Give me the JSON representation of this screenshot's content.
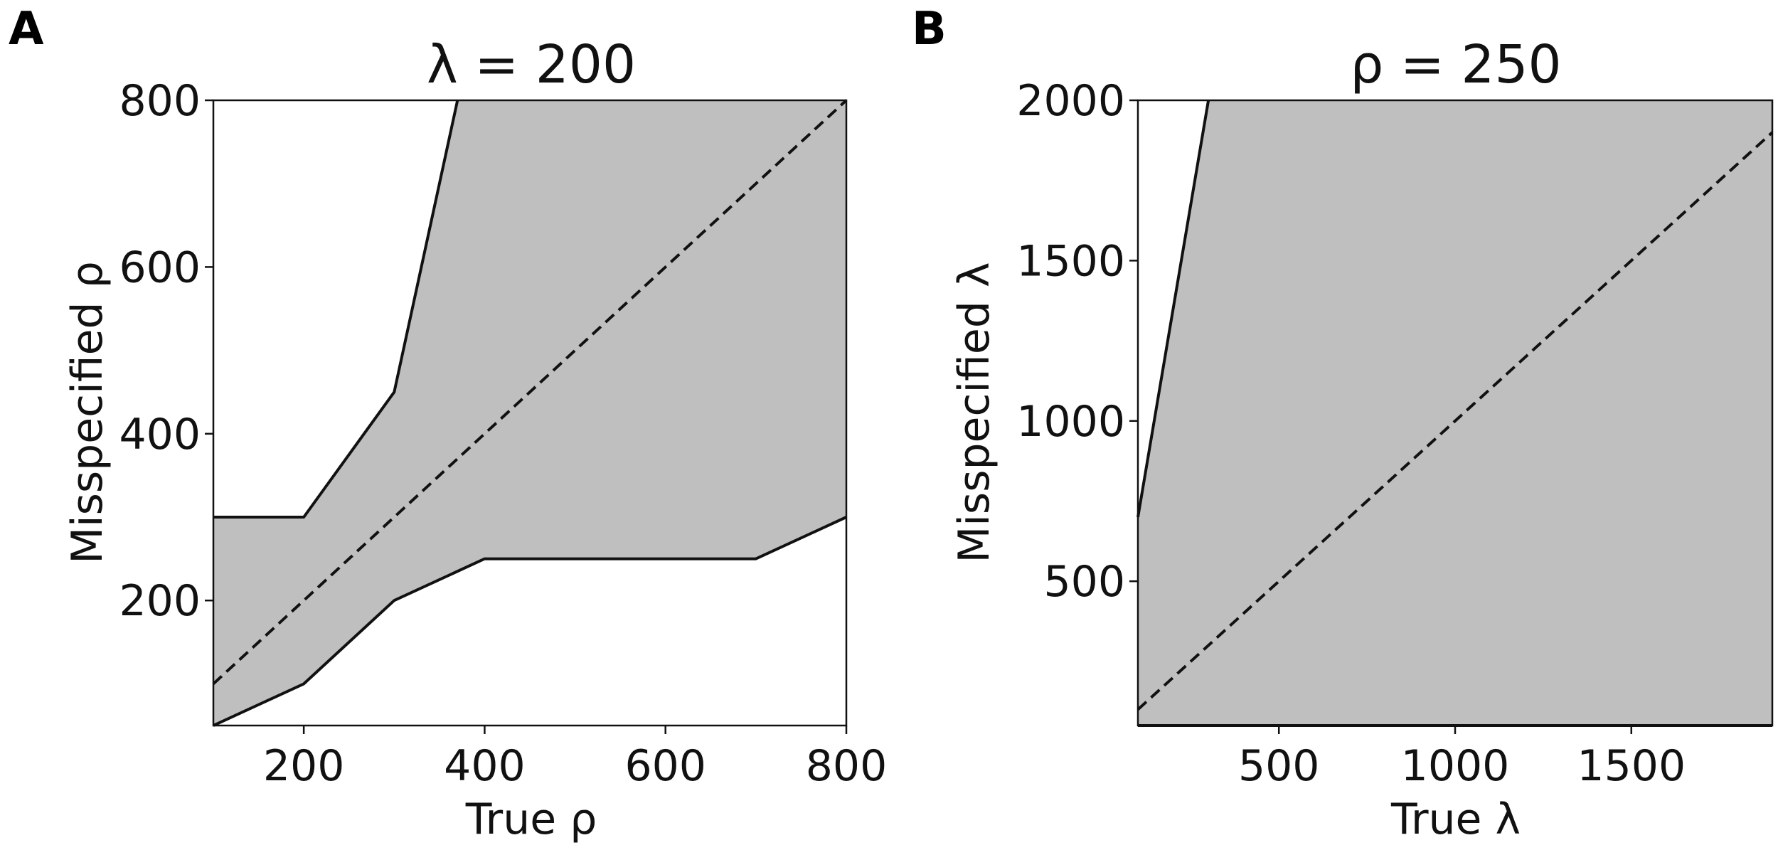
{
  "chart_data": [
    {
      "panel_label": "A",
      "type": "area",
      "title": "λ = 200",
      "xlabel": "True ρ",
      "ylabel": "Misspecified ρ",
      "xlim": [
        100,
        800
      ],
      "ylim": [
        50,
        800
      ],
      "xticks": [
        200,
        400,
        600,
        800
      ],
      "yticks": [
        200,
        400,
        600,
        800
      ],
      "grid": false,
      "fill_color": "#bfbfbf",
      "upper_bound": {
        "x": [
          100,
          200,
          300,
          370
        ],
        "y": [
          300,
          300,
          450,
          800
        ]
      },
      "lower_bound": {
        "x": [
          100,
          200,
          300,
          400,
          700,
          800
        ],
        "y": [
          50,
          100,
          200,
          250,
          250,
          300
        ]
      },
      "reference_line": {
        "x": [
          100,
          800
        ],
        "y": [
          100,
          800
        ],
        "style": "dashed"
      }
    },
    {
      "panel_label": "B",
      "type": "area",
      "title": "ρ = 250",
      "xlabel": "True λ",
      "ylabel": "Misspecified λ",
      "xlim": [
        100,
        1900
      ],
      "ylim": [
        50,
        2000
      ],
      "xticks": [
        500,
        1000,
        1500
      ],
      "yticks": [
        500,
        1000,
        1500,
        2000
      ],
      "grid": false,
      "fill_color": "#bfbfbf",
      "upper_bound": {
        "x": [
          100,
          300
        ],
        "y": [
          700,
          2000
        ]
      },
      "lower_bound": {
        "x": [
          100,
          1900
        ],
        "y": [
          50,
          50
        ]
      },
      "reference_line": {
        "x": [
          100,
          1900
        ],
        "y": [
          100,
          1900
        ],
        "style": "dashed"
      }
    }
  ]
}
